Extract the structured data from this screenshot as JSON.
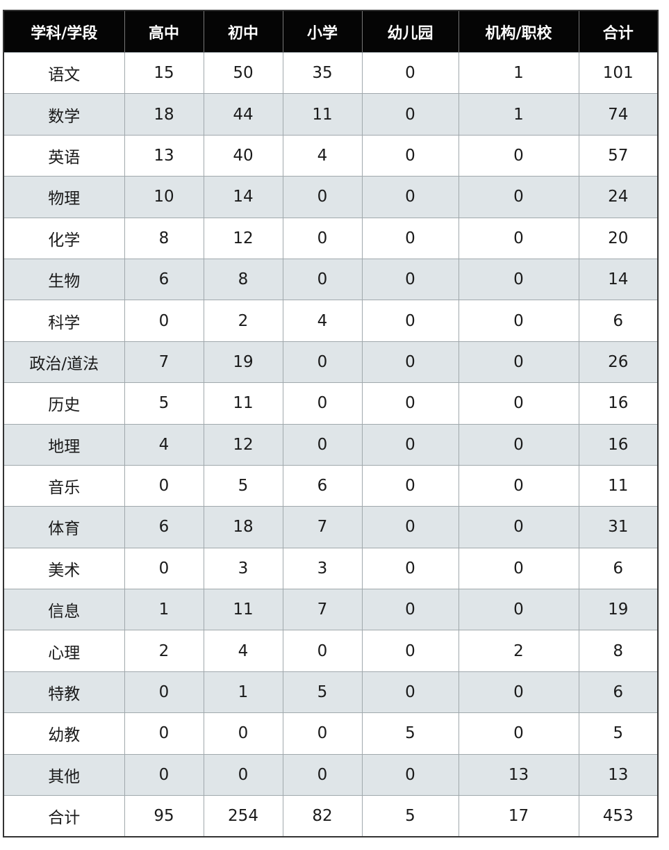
{
  "table": {
    "headers": [
      "学科/学段",
      "高中",
      "初中",
      "小学",
      "幼儿园",
      "机构/职校",
      "合计"
    ],
    "rows": [
      [
        "语文",
        "15",
        "50",
        "35",
        "0",
        "1",
        "101"
      ],
      [
        "数学",
        "18",
        "44",
        "11",
        "0",
        "1",
        "74"
      ],
      [
        "英语",
        "13",
        "40",
        "4",
        "0",
        "0",
        "57"
      ],
      [
        "物理",
        "10",
        "14",
        "0",
        "0",
        "0",
        "24"
      ],
      [
        "化学",
        "8",
        "12",
        "0",
        "0",
        "0",
        "20"
      ],
      [
        "生物",
        "6",
        "8",
        "0",
        "0",
        "0",
        "14"
      ],
      [
        "科学",
        "0",
        "2",
        "4",
        "0",
        "0",
        "6"
      ],
      [
        "政治/道法",
        "7",
        "19",
        "0",
        "0",
        "0",
        "26"
      ],
      [
        "历史",
        "5",
        "11",
        "0",
        "0",
        "0",
        "16"
      ],
      [
        "地理",
        "4",
        "12",
        "0",
        "0",
        "0",
        "16"
      ],
      [
        "音乐",
        "0",
        "5",
        "6",
        "0",
        "0",
        "11"
      ],
      [
        "体育",
        "6",
        "18",
        "7",
        "0",
        "0",
        "31"
      ],
      [
        "美术",
        "0",
        "3",
        "3",
        "0",
        "0",
        "6"
      ],
      [
        "信息",
        "1",
        "11",
        "7",
        "0",
        "0",
        "19"
      ],
      [
        "心理",
        "2",
        "4",
        "0",
        "0",
        "2",
        "8"
      ],
      [
        "特教",
        "0",
        "1",
        "5",
        "0",
        "0",
        "6"
      ],
      [
        "幼教",
        "0",
        "0",
        "0",
        "5",
        "0",
        "5"
      ],
      [
        "其他",
        "0",
        "0",
        "0",
        "0",
        "13",
        "13"
      ],
      [
        "合计",
        "95",
        "254",
        "82",
        "5",
        "17",
        "453"
      ]
    ]
  },
  "colors": {
    "header_bg": "#050505",
    "header_text": "#ffffff",
    "stripe": "#dfe5e8",
    "grid": "#a0a8ac"
  }
}
